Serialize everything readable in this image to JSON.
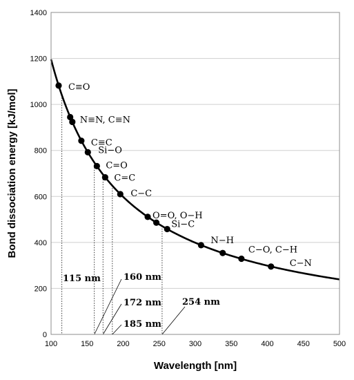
{
  "chart_data": {
    "type": "line",
    "xlabel": "Wavelength [nm]",
    "ylabel": "Bond dissociation energy [kJ/mol]",
    "xlim": [
      100,
      500
    ],
    "ylim": [
      0,
      1400
    ],
    "xticks": [
      "100",
      "150",
      "200",
      "250",
      "300",
      "350",
      "400",
      "450",
      "500"
    ],
    "yticks": [
      "0",
      "200",
      "400",
      "600",
      "800",
      "1000",
      "1200",
      "1400"
    ],
    "grid": "horizontal",
    "curve": {
      "relation": "E = 119600 / wavelength",
      "x_range": [
        100,
        500
      ]
    },
    "points": [
      {
        "x": 110.5,
        "y": 1082,
        "label": "C≡O"
      },
      {
        "x": 126.5,
        "y": 945,
        "label": "N≡N, C≡N"
      },
      {
        "x": 129.5,
        "y": 924,
        "label": ""
      },
      {
        "x": 142,
        "y": 842,
        "label": "C≡C"
      },
      {
        "x": 151,
        "y": 792,
        "label": "Si−O"
      },
      {
        "x": 163.5,
        "y": 732,
        "label": "C=O"
      },
      {
        "x": 175,
        "y": 683,
        "label": "C=C"
      },
      {
        "x": 196,
        "y": 610,
        "label": "C−C"
      },
      {
        "x": 234,
        "y": 511,
        "label": "O=O, O−H"
      },
      {
        "x": 246,
        "y": 486,
        "label": ""
      },
      {
        "x": 261,
        "y": 458,
        "label": "Si−C"
      },
      {
        "x": 308,
        "y": 388,
        "label": "N−H"
      },
      {
        "x": 338,
        "y": 354,
        "label": ""
      },
      {
        "x": 364,
        "y": 329,
        "label": "C−O, C−H"
      },
      {
        "x": 405,
        "y": 295,
        "label": "C−N"
      }
    ],
    "wavelength_markers": [
      {
        "x": 115,
        "label": "115 nm"
      },
      {
        "x": 160,
        "label": "160 nm"
      },
      {
        "x": 172,
        "label": "172 nm"
      },
      {
        "x": 185,
        "label": "185 nm"
      },
      {
        "x": 254,
        "label": "254 nm"
      }
    ]
  }
}
